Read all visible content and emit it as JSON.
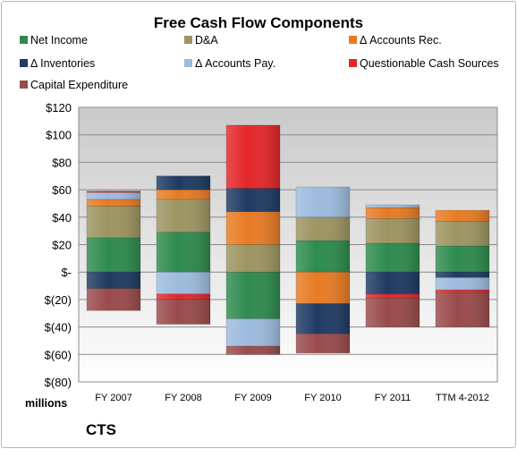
{
  "chart_data": {
    "type": "bar",
    "stacked": true,
    "title": "Free Cash Flow Components",
    "categories": [
      "FY 2007",
      "FY 2008",
      "FY 2009",
      "FY 2010",
      "FY 2011",
      "TTM 4-2012"
    ],
    "ylabel": "millions",
    "ylim": [
      -80,
      120
    ],
    "yticks": [
      120,
      100,
      80,
      60,
      40,
      20,
      0,
      -20,
      -40,
      -60,
      -80
    ],
    "ytick_labels": [
      "$120",
      "$100",
      "$80",
      "$60",
      "$40",
      "$20",
      "$-",
      "$(20)",
      "$(40)",
      "$(60)",
      "$(80)"
    ],
    "legend_position": "top",
    "grid": true,
    "series": [
      {
        "name": "Net Income",
        "color": "#2e8b4e",
        "values": [
          25,
          29,
          -34,
          23,
          21,
          19
        ]
      },
      {
        "name": "D&A",
        "color": "#9c9461",
        "values": [
          23,
          24,
          20,
          17,
          18,
          18
        ]
      },
      {
        "name": "Δ Accounts Rec.",
        "color": "#e77b24",
        "values": [
          5,
          7,
          24,
          -23,
          8,
          8
        ]
      },
      {
        "name": "Δ Inventories",
        "color": "#1f3b63",
        "values": [
          -12,
          10,
          17,
          -22,
          -16,
          -4
        ]
      },
      {
        "name": "Δ Accounts Pay.",
        "color": "#9dbbdd",
        "values": [
          5,
          -16,
          -20,
          22,
          2,
          -9
        ]
      },
      {
        "name": "Questionable Cash Sources",
        "color": "#e3272a",
        "values": [
          1,
          -4,
          46,
          0,
          -3,
          -2
        ]
      },
      {
        "name": "Capital Expenditure",
        "color": "#9a4b4b",
        "values": [
          -16,
          -18,
          -6,
          -14,
          -21,
          -25
        ]
      }
    ]
  },
  "footer": {
    "units": "millions",
    "company": "CTS"
  }
}
